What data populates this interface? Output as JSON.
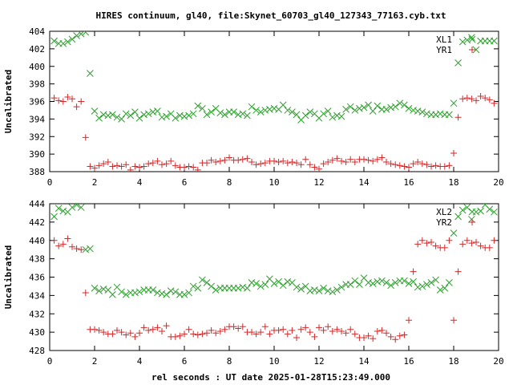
{
  "chart_data": {
    "title": "HIRES continuum, gl40, file:Skynet_60703_gl40_127343_77163.cyb.txt",
    "xlabel": "rel seconds : UT date 2025-01-28T15:23:49.000",
    "panels": [
      {
        "type": "scatter",
        "ylabel": "Uncalibrated",
        "xlim": [
          0,
          20
        ],
        "ylim": [
          388,
          404
        ],
        "x_ticks": [
          0,
          2,
          4,
          6,
          8,
          10,
          12,
          14,
          16,
          18,
          20
        ],
        "y_ticks": [
          388,
          390,
          392,
          394,
          396,
          398,
          400,
          402,
          404
        ],
        "legend_position": "top-right",
        "series": [
          {
            "name": "XL1",
            "color": "#2ca02c",
            "marker": "x",
            "x": [
              0.2,
              0.4,
              0.6,
              0.8,
              1.0,
              1.2,
              1.4,
              1.6,
              1.8,
              2.0,
              2.2,
              2.4,
              2.6,
              2.8,
              3.0,
              3.2,
              3.4,
              3.6,
              3.8,
              4.0,
              4.2,
              4.4,
              4.6,
              4.8,
              5.0,
              5.2,
              5.4,
              5.6,
              5.8,
              6.0,
              6.2,
              6.4,
              6.6,
              6.8,
              7.0,
              7.2,
              7.4,
              7.6,
              7.8,
              8.0,
              8.2,
              8.4,
              8.6,
              8.8,
              9.0,
              9.2,
              9.4,
              9.6,
              9.8,
              10.0,
              10.2,
              10.4,
              10.6,
              10.8,
              11.0,
              11.2,
              11.4,
              11.6,
              11.8,
              12.0,
              12.2,
              12.4,
              12.6,
              12.8,
              13.0,
              13.2,
              13.4,
              13.6,
              13.8,
              14.0,
              14.2,
              14.4,
              14.6,
              14.8,
              15.0,
              15.2,
              15.4,
              15.6,
              15.8,
              16.0,
              16.2,
              16.4,
              16.6,
              16.8,
              17.0,
              17.2,
              17.4,
              17.6,
              17.8,
              18.0,
              18.2,
              18.4,
              18.6,
              18.8,
              19.0,
              19.2,
              19.4,
              19.6,
              19.8
            ],
            "y": [
              402.9,
              402.6,
              402.6,
              402.8,
              403.1,
              403.5,
              403.7,
              403.9,
              399.2,
              394.9,
              394.1,
              394.5,
              394.4,
              394.5,
              394.2,
              394.0,
              394.6,
              394.4,
              394.8,
              394.1,
              394.5,
              394.6,
              394.8,
              394.9,
              394.2,
              394.3,
              394.6,
              394.1,
              394.4,
              394.3,
              394.4,
              394.6,
              395.5,
              395.2,
              394.5,
              394.8,
              395.2,
              394.7,
              394.5,
              394.8,
              394.8,
              394.5,
              394.6,
              394.4,
              395.4,
              395.0,
              394.8,
              395.0,
              395.1,
              395.2,
              395.1,
              395.6,
              395.0,
              394.8,
              394.5,
              393.9,
              394.4,
              394.8,
              394.6,
              394.1,
              394.6,
              394.9,
              394.2,
              394.4,
              394.3,
              395.1,
              395.4,
              395.0,
              395.2,
              395.3,
              395.6,
              394.9,
              395.5,
              395.1,
              395.1,
              395.3,
              395.4,
              395.8,
              395.6,
              395.2,
              395.0,
              394.9,
              394.8,
              394.6,
              394.5,
              394.5,
              394.6,
              394.5,
              394.5,
              395.8,
              400.4,
              402.8,
              403.0,
              403.3,
              401.9,
              402.9,
              402.9,
              402.9,
              402.9
            ]
          },
          {
            "name": "YR1",
            "color": "#d62728",
            "marker": "+",
            "x": [
              0.2,
              0.4,
              0.6,
              0.8,
              1.0,
              1.2,
              1.4,
              1.6,
              1.8,
              2.0,
              2.2,
              2.4,
              2.6,
              2.8,
              3.0,
              3.2,
              3.4,
              3.6,
              3.8,
              4.0,
              4.2,
              4.4,
              4.6,
              4.8,
              5.0,
              5.2,
              5.4,
              5.6,
              5.8,
              6.0,
              6.2,
              6.4,
              6.6,
              6.8,
              7.0,
              7.2,
              7.4,
              7.6,
              7.8,
              8.0,
              8.2,
              8.4,
              8.6,
              8.8,
              9.0,
              9.2,
              9.4,
              9.6,
              9.8,
              10.0,
              10.2,
              10.4,
              10.6,
              10.8,
              11.0,
              11.2,
              11.4,
              11.6,
              11.8,
              12.0,
              12.2,
              12.4,
              12.6,
              12.8,
              13.0,
              13.2,
              13.4,
              13.6,
              13.8,
              14.0,
              14.2,
              14.4,
              14.6,
              14.8,
              15.0,
              15.2,
              15.4,
              15.6,
              15.8,
              16.0,
              16.2,
              16.4,
              16.6,
              16.8,
              17.0,
              17.2,
              17.4,
              17.6,
              17.8,
              18.0,
              18.2,
              18.4,
              18.6,
              18.8,
              19.0,
              19.2,
              19.4,
              19.6,
              19.8
            ],
            "y": [
              396.4,
              396.1,
              396.0,
              396.5,
              396.3,
              395.4,
              396.0,
              391.9,
              388.6,
              388.4,
              388.7,
              388.9,
              389.1,
              388.6,
              388.7,
              388.6,
              388.8,
              388.2,
              388.6,
              388.5,
              388.6,
              388.9,
              389.0,
              389.2,
              388.8,
              388.9,
              389.2,
              388.7,
              388.5,
              388.5,
              388.6,
              388.5,
              388.2,
              389.0,
              389.0,
              389.3,
              389.1,
              389.2,
              389.3,
              389.6,
              389.3,
              389.3,
              389.4,
              389.5,
              389.1,
              388.8,
              388.9,
              389.0,
              389.2,
              389.2,
              389.1,
              389.2,
              389.0,
              389.1,
              389.0,
              388.8,
              389.4,
              388.8,
              388.5,
              388.3,
              388.9,
              389.1,
              389.3,
              389.5,
              389.2,
              389.1,
              389.4,
              389.1,
              389.4,
              389.4,
              389.3,
              389.2,
              389.4,
              389.6,
              389.1,
              388.9,
              388.8,
              388.7,
              388.6,
              388.5,
              388.9,
              389.1,
              388.9,
              388.8,
              388.6,
              388.7,
              388.6,
              388.6,
              388.7,
              390.1,
              394.2,
              396.3,
              396.4,
              396.3,
              396.1,
              396.6,
              396.4,
              396.2,
              395.8
            ]
          }
        ]
      },
      {
        "type": "scatter",
        "ylabel": "Uncalibrated",
        "xlim": [
          0,
          20
        ],
        "ylim": [
          428,
          444
        ],
        "x_ticks": [
          0,
          2,
          4,
          6,
          8,
          10,
          12,
          14,
          16,
          18,
          20
        ],
        "y_ticks": [
          428,
          430,
          432,
          434,
          436,
          438,
          440,
          442,
          444
        ],
        "legend_position": "top-right",
        "series": [
          {
            "name": "XL2",
            "color": "#2ca02c",
            "marker": "x",
            "x": [
              0.2,
              0.4,
              0.6,
              0.8,
              1.0,
              1.2,
              1.4,
              1.6,
              1.8,
              2.0,
              2.2,
              2.4,
              2.6,
              2.8,
              3.0,
              3.2,
              3.4,
              3.6,
              3.8,
              4.0,
              4.2,
              4.4,
              4.6,
              4.8,
              5.0,
              5.2,
              5.4,
              5.6,
              5.8,
              6.0,
              6.2,
              6.4,
              6.6,
              6.8,
              7.0,
              7.2,
              7.4,
              7.6,
              7.8,
              8.0,
              8.2,
              8.4,
              8.6,
              8.8,
              9.0,
              9.2,
              9.4,
              9.6,
              9.8,
              10.0,
              10.2,
              10.4,
              10.6,
              10.8,
              11.0,
              11.2,
              11.4,
              11.6,
              11.8,
              12.0,
              12.2,
              12.4,
              12.6,
              12.8,
              13.0,
              13.2,
              13.4,
              13.6,
              13.8,
              14.0,
              14.2,
              14.4,
              14.6,
              14.8,
              15.0,
              15.2,
              15.4,
              15.6,
              15.8,
              16.0,
              16.2,
              16.4,
              16.6,
              16.8,
              17.0,
              17.2,
              17.4,
              17.6,
              17.8,
              18.0,
              18.2,
              18.4,
              18.6,
              18.8,
              19.0,
              19.2,
              19.4,
              19.6,
              19.8
            ],
            "y": [
              442.6,
              443.5,
              443.2,
              443.1,
              443.6,
              443.9,
              443.6,
              439.0,
              439.1,
              434.8,
              434.5,
              434.7,
              434.6,
              434.1,
              434.9,
              434.4,
              434.1,
              434.3,
              434.3,
              434.4,
              434.6,
              434.6,
              434.6,
              434.3,
              434.2,
              434.1,
              434.5,
              434.4,
              434.1,
              434.1,
              434.3,
              435.0,
              434.8,
              435.7,
              435.4,
              435.0,
              434.6,
              434.8,
              434.8,
              434.8,
              434.8,
              434.8,
              434.9,
              434.8,
              435.4,
              435.3,
              435.0,
              435.2,
              435.8,
              435.3,
              435.5,
              435.1,
              435.5,
              435.4,
              434.9,
              434.7,
              435.0,
              434.5,
              434.6,
              434.5,
              434.8,
              434.5,
              434.4,
              434.6,
              434.9,
              435.2,
              435.2,
              435.6,
              435.2,
              435.9,
              435.4,
              435.3,
              435.5,
              435.6,
              435.4,
              435.1,
              435.4,
              435.6,
              435.6,
              435.3,
              435.5,
              434.9,
              435.0,
              435.2,
              435.4,
              435.7,
              434.6,
              434.8,
              435.4,
              440.8,
              442.6,
              443.3,
              443.6,
              442.3,
              443.1,
              443.2,
              443.9,
              443.4,
              443.1
            ]
          },
          {
            "name": "YR2",
            "color": "#d62728",
            "marker": "+",
            "x": [
              0.2,
              0.4,
              0.6,
              0.8,
              1.0,
              1.2,
              1.4,
              1.6,
              1.8,
              2.0,
              2.2,
              2.4,
              2.6,
              2.8,
              3.0,
              3.2,
              3.4,
              3.6,
              3.8,
              4.0,
              4.2,
              4.4,
              4.6,
              4.8,
              5.0,
              5.2,
              5.4,
              5.6,
              5.8,
              6.0,
              6.2,
              6.4,
              6.6,
              6.8,
              7.0,
              7.2,
              7.4,
              7.6,
              7.8,
              8.0,
              8.2,
              8.4,
              8.6,
              8.8,
              9.0,
              9.2,
              9.4,
              9.6,
              9.8,
              10.0,
              10.2,
              10.4,
              10.6,
              10.8,
              11.0,
              11.2,
              11.4,
              11.6,
              11.8,
              12.0,
              12.2,
              12.4,
              12.6,
              12.8,
              13.0,
              13.2,
              13.4,
              13.6,
              13.8,
              14.0,
              14.2,
              14.4,
              14.6,
              14.8,
              15.0,
              15.2,
              15.4,
              15.6,
              15.8,
              16.0,
              16.2,
              16.4,
              16.6,
              16.8,
              17.0,
              17.2,
              17.4,
              17.6,
              17.8,
              18.0,
              18.2,
              18.4,
              18.6,
              18.8,
              19.0,
              19.2,
              19.4,
              19.6,
              19.8
            ],
            "y": [
              440.0,
              439.4,
              439.6,
              440.2,
              439.3,
              439.1,
              439.0,
              434.3,
              430.3,
              430.3,
              430.2,
              430.0,
              429.8,
              429.8,
              430.2,
              430.0,
              429.7,
              429.9,
              429.5,
              429.9,
              430.5,
              430.2,
              430.3,
              430.5,
              430.1,
              430.7,
              429.5,
              429.5,
              429.6,
              429.8,
              430.3,
              429.8,
              429.7,
              429.8,
              429.9,
              430.2,
              429.9,
              430.1,
              430.3,
              430.6,
              430.6,
              430.4,
              430.6,
              430.0,
              430.0,
              429.8,
              430.0,
              430.6,
              429.8,
              430.2,
              430.2,
              430.3,
              429.8,
              430.2,
              429.4,
              430.3,
              430.5,
              430.0,
              429.5,
              430.5,
              430.2,
              430.6,
              430.1,
              430.3,
              430.1,
              429.9,
              430.3,
              429.8,
              429.4,
              429.4,
              429.6,
              429.3,
              430.1,
              430.2,
              429.9,
              429.5,
              429.2,
              429.6,
              429.7,
              431.3,
              436.6,
              439.6,
              440.0,
              439.7,
              439.8,
              439.4,
              439.2,
              439.2,
              440.0,
              431.3,
              436.6,
              439.6,
              440.0,
              439.7,
              439.8,
              439.4,
              439.2,
              439.2,
              440.0
            ]
          }
        ]
      }
    ]
  }
}
